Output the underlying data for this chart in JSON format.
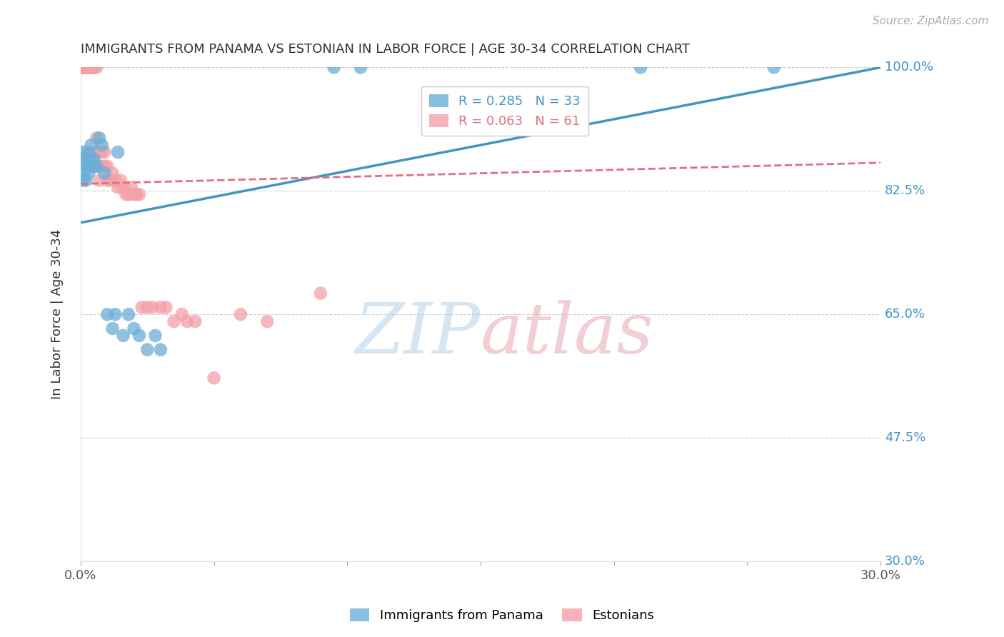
{
  "title": "IMMIGRANTS FROM PANAMA VS ESTONIAN IN LABOR FORCE | AGE 30-34 CORRELATION CHART",
  "source_text": "Source: ZipAtlas.com",
  "ylabel": "In Labor Force | Age 30-34",
  "xlim": [
    0.0,
    0.3
  ],
  "ylim": [
    0.3,
    1.0
  ],
  "xticks": [
    0.0,
    0.05,
    0.1,
    0.15,
    0.2,
    0.25,
    0.3
  ],
  "xticklabels": [
    "0.0%",
    "",
    "",
    "",
    "",
    "",
    "30.0%"
  ],
  "yticks": [
    0.3,
    0.475,
    0.65,
    0.825,
    1.0
  ],
  "yticklabels": [
    "30.0%",
    "47.5%",
    "65.0%",
    "82.5%",
    "100.0%"
  ],
  "panama_color": "#6baed6",
  "estonian_color": "#f4a0a8",
  "panama_R": 0.285,
  "panama_N": 33,
  "estonian_R": 0.063,
  "estonian_N": 61,
  "legend_panama_label": "R = 0.285   N = 33",
  "legend_estonian_label": "R = 0.063   N = 61",
  "panama_line_color": "#4393c3",
  "estonian_line_color": "#e07080",
  "panama_x": [
    0.001,
    0.001,
    0.001,
    0.001,
    0.002,
    0.002,
    0.002,
    0.003,
    0.003,
    0.003,
    0.004,
    0.004,
    0.005,
    0.005,
    0.006,
    0.007,
    0.008,
    0.009,
    0.01,
    0.012,
    0.013,
    0.014,
    0.016,
    0.018,
    0.02,
    0.022,
    0.025,
    0.028,
    0.03,
    0.095,
    0.105,
    0.21,
    0.26
  ],
  "panama_y": [
    0.84,
    0.85,
    0.87,
    0.88,
    0.84,
    0.86,
    0.87,
    0.85,
    0.86,
    0.88,
    0.87,
    0.89,
    0.86,
    0.87,
    0.86,
    0.9,
    0.89,
    0.85,
    0.65,
    0.63,
    0.65,
    0.88,
    0.62,
    0.65,
    0.63,
    0.62,
    0.6,
    0.62,
    0.6,
    1.0,
    1.0,
    1.0,
    1.0
  ],
  "estonian_x": [
    0.001,
    0.001,
    0.001,
    0.001,
    0.001,
    0.002,
    0.002,
    0.002,
    0.002,
    0.002,
    0.002,
    0.003,
    0.003,
    0.003,
    0.003,
    0.003,
    0.003,
    0.004,
    0.004,
    0.004,
    0.004,
    0.005,
    0.005,
    0.005,
    0.006,
    0.006,
    0.006,
    0.007,
    0.007,
    0.007,
    0.008,
    0.008,
    0.009,
    0.009,
    0.01,
    0.01,
    0.011,
    0.012,
    0.013,
    0.014,
    0.015,
    0.016,
    0.017,
    0.018,
    0.019,
    0.02,
    0.021,
    0.022,
    0.023,
    0.025,
    0.027,
    0.03,
    0.032,
    0.035,
    0.038,
    0.04,
    0.043,
    0.05,
    0.06,
    0.07,
    0.09
  ],
  "estonian_y": [
    1.0,
    1.0,
    1.0,
    1.0,
    1.0,
    1.0,
    1.0,
    1.0,
    1.0,
    1.0,
    1.0,
    1.0,
    1.0,
    1.0,
    1.0,
    1.0,
    1.0,
    1.0,
    1.0,
    1.0,
    1.0,
    1.0,
    1.0,
    1.0,
    0.9,
    0.88,
    1.0,
    0.88,
    0.86,
    0.84,
    0.88,
    0.86,
    0.88,
    0.86,
    0.86,
    0.84,
    0.84,
    0.85,
    0.84,
    0.83,
    0.84,
    0.83,
    0.82,
    0.82,
    0.83,
    0.82,
    0.82,
    0.82,
    0.66,
    0.66,
    0.66,
    0.66,
    0.66,
    0.64,
    0.65,
    0.64,
    0.64,
    0.56,
    0.65,
    0.64,
    0.68
  ],
  "bg_color": "#ffffff",
  "grid_color": "#cccccc",
  "title_color": "#333333",
  "axis_label_color": "#333333",
  "tick_color_right": "#4393c3",
  "tick_color_bottom": "#555555"
}
